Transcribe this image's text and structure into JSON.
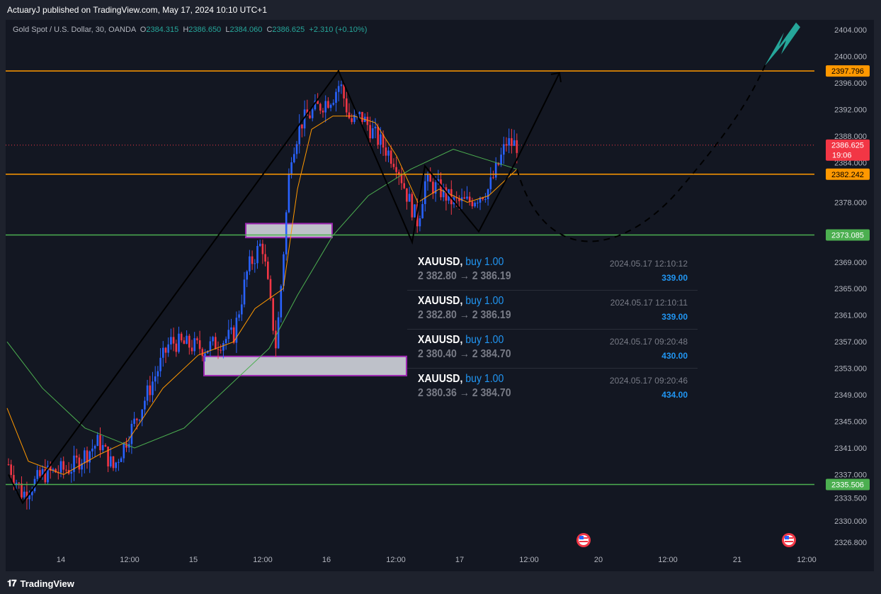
{
  "header": {
    "publisher_text": "ActuaryJ published on TradingView.com, May 17, 2024 10:10 UTC+1"
  },
  "legend": {
    "symbol": "Gold Spot / U.S. Dollar, 30, OANDA",
    "o_label": "O",
    "o": "2384.315",
    "h_label": "H",
    "h": "2386.650",
    "l_label": "L",
    "l": "2384.060",
    "c_label": "C",
    "c": "2386.625",
    "change": "+2.310 (+0.10%)"
  },
  "chart_data": {
    "type": "candlestick",
    "y_axis": {
      "ticks": [
        "2404.000",
        "2400.000",
        "2396.000",
        "2392.000",
        "2388.000",
        "2384.000",
        "2378.000",
        "2373.000",
        "2369.000",
        "2365.000",
        "2361.000",
        "2357.000",
        "2353.000",
        "2349.000",
        "2345.000",
        "2341.000",
        "2337.000",
        "2333.500",
        "2330.000",
        "2326.800"
      ],
      "ylim": [
        2325,
        2407
      ]
    },
    "x_axis": {
      "ticks": [
        "14",
        "12:00",
        "15",
        "12:00",
        "16",
        "12:00",
        "17",
        "12:00",
        "20",
        "12:00",
        "21",
        "12:00"
      ]
    },
    "horizontal_levels": [
      {
        "value": 2397.796,
        "label": "2397.796",
        "color": "#ff9800"
      },
      {
        "value": 2382.242,
        "label": "2382.242",
        "color": "#ff9800"
      },
      {
        "value": 2373.085,
        "label": "2373.085",
        "color": "#4caf50"
      },
      {
        "value": 2335.506,
        "label": "2335.506",
        "color": "#4caf50"
      }
    ],
    "last_price": {
      "value": 2386.625,
      "label": "2386.625",
      "countdown": "19:06",
      "color": "#f23645"
    },
    "zigzag_points": [
      [
        2338.0,
        2332.5
      ],
      [
        2333.0,
        2337.0
      ]
    ],
    "colors": {
      "up": "#2962ff",
      "down": "#f23645",
      "ma_fast": "#ff9800",
      "ma_slow": "#4caf50"
    }
  },
  "trades": [
    {
      "symbol": "XAUUSD",
      "side": "buy 1.00",
      "prices": "2 382.80 → 2 386.19",
      "time": "2024.05.17 12:10:12",
      "pnl": "339.00"
    },
    {
      "symbol": "XAUUSD",
      "side": "buy 1.00",
      "prices": "2 382.80 → 2 386.19",
      "time": "2024.05.17 12:10:11",
      "pnl": "339.00"
    },
    {
      "symbol": "XAUUSD",
      "side": "buy 1.00",
      "prices": "2 380.40 → 2 384.70",
      "time": "2024.05.17 09:20:48",
      "pnl": "430.00"
    },
    {
      "symbol": "XAUUSD",
      "side": "buy 1.00",
      "prices": "2 380.36 → 2 384.70",
      "time": "2024.05.17 09:20:46",
      "pnl": "434.00"
    }
  ],
  "footer": {
    "brand": "TradingView"
  }
}
